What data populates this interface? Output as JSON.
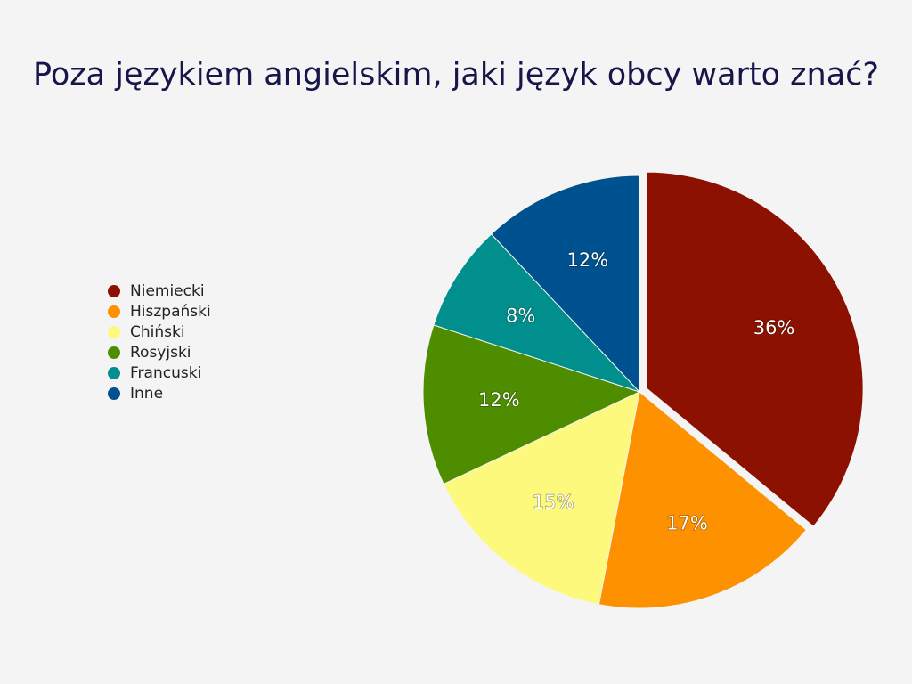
{
  "chart_data": {
    "type": "pie",
    "title": "Poza językiem angielskim, jaki język obcy warto znać?",
    "categories": [
      "Niemiecki",
      "Hiszpański",
      "Chiński",
      "Rosyjski",
      "Francuski",
      "Inne"
    ],
    "values": [
      36,
      17,
      15,
      12,
      8,
      12
    ],
    "value_labels": [
      "36%",
      "17%",
      "15%",
      "12%",
      "8%",
      "12%"
    ],
    "colors": [
      "#8d1100",
      "#fe9100",
      "#fdf97c",
      "#4f8d00",
      "#008f8c",
      "#00518f"
    ],
    "legend": "left"
  }
}
